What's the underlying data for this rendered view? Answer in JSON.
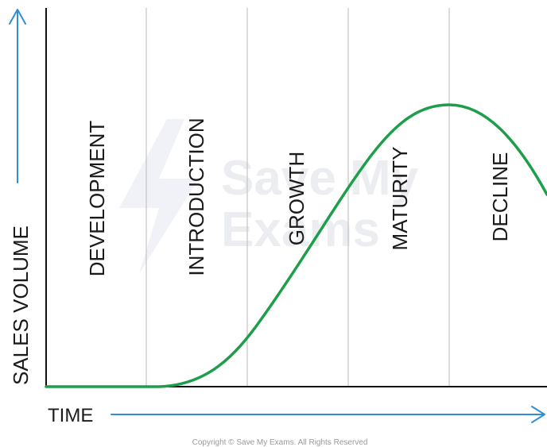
{
  "diagram": {
    "stages": [
      "DEVELOPMENT",
      "INTRODUCTION",
      "GROWTH",
      "MATURITY",
      "DECLINE"
    ],
    "y_axis_label": "SALES VOLUME",
    "x_axis_label": "TIME",
    "watermark": "Save My Exams",
    "copyright": "Copyright © Save My Exams. All Rights Reserved",
    "colors": {
      "curve": "#1e9e4a",
      "arrows": "#2e8fd6",
      "dividers": "#c8c8c8"
    }
  }
}
